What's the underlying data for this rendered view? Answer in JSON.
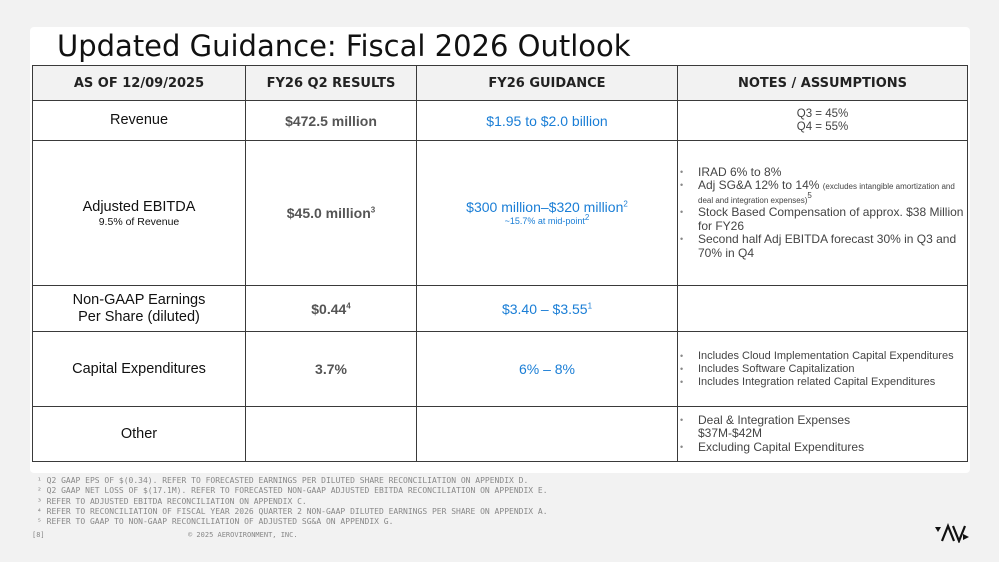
{
  "title": "Updated Guidance: Fiscal 2026 Outlook",
  "table": {
    "headers": [
      "AS OF 12/09/2025",
      "FY26 Q2 RESULTS",
      "FY26 GUIDANCE",
      "NOTES / ASSUMPTIONS"
    ],
    "rows": [
      {
        "label": "Revenue",
        "q2": "$472.5 million",
        "guidance": "$1.95 to $2.0 billion",
        "notes_lines": [
          "Q3 = 45%",
          "Q4 = 55%"
        ]
      },
      {
        "label": "Adjusted EBITDA",
        "label_sub": "9.5% of Revenue",
        "q2": "$45.0 million",
        "q2_sup": "3",
        "guidance": "$300 million–$320 million",
        "guidance_sup": "2",
        "guidance_sub": "~15.7% at mid-point",
        "guidance_sub_sup": "2",
        "notes": [
          "IRAD 6% to 8%",
          "Adj SG&A 12% to 14%",
          "Stock Based Compensation of approx. $38 Million for FY26",
          "Second half Adj EBITDA forecast 30% in Q3 and 70% in Q4"
        ],
        "notes_small": "(excludes intangible amortization and deal and integration expenses)",
        "notes_small_sup": "5"
      },
      {
        "label_line1": "Non-GAAP Earnings",
        "label_line2": "Per Share (diluted)",
        "q2": "$0.44",
        "q2_sup": "4",
        "guidance": "$3.40 – $3.55",
        "guidance_sup": "1"
      },
      {
        "label": "Capital Expenditures",
        "q2": "3.7%",
        "guidance": "6% – 8%",
        "notes": [
          "Includes Cloud Implementation Capital Expenditures",
          "Includes Software Capitalization",
          "Includes Integration related Capital Expenditures"
        ]
      },
      {
        "label": "Other",
        "notes": [
          "Deal & Integration Expenses",
          "Excluding Capital Expenditures"
        ],
        "notes_cont": "$37M-$42M"
      }
    ]
  },
  "footnotes": [
    "¹ Q2 GAAP EPS OF $(0.34). REFER TO FORECASTED EARNINGS PER DILUTED SHARE RECONCILIATION ON APPENDIX D.",
    "² Q2 GAAP NET LOSS OF $(17.1M).  REFER TO FORECASTED NON-GAAP ADJUSTED EBITDA RECONCILIATION ON APPENDIX E.",
    "³ REFER TO ADJUSTED EBITDA RECONCILIATION ON APPENDIX C.",
    "⁴ REFER TO RECONCILIATION OF FISCAL YEAR 2026 QUARTER 2 NON-GAAP DILUTED EARNINGS PER SHARE ON APPENDIX A.",
    "⁵ REFER TO GAAP TO NON-GAAP RECONCILIATION OF ADJUSTED SG&A ON APPENDIX G."
  ],
  "page_number": "[8]",
  "copyright": "© 2025 AEROVIRONMENT, INC.",
  "logo": {
    "icon": "av-logo-icon",
    "color": "#111111"
  },
  "colors": {
    "guidance": "#1a7ed6",
    "header_bg": "#f2f2f2",
    "q2": "#555555"
  }
}
